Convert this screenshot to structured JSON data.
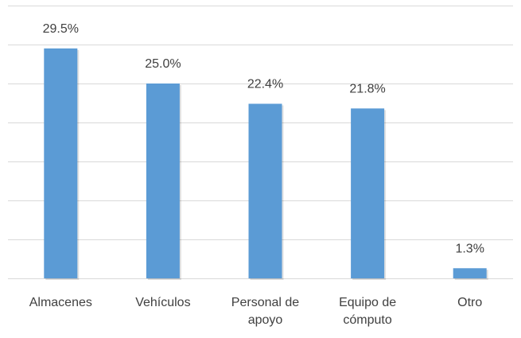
{
  "chart_data": {
    "type": "bar",
    "categories": [
      "Almacenes",
      "Vehículos",
      "Personal de apoyo",
      "Equipo de cómputo",
      "Otro"
    ],
    "values": [
      29.5,
      25.0,
      22.4,
      21.8,
      1.3
    ],
    "value_labels": [
      "29.5%",
      "25.0%",
      "22.4%",
      "21.8%",
      "1.3%"
    ],
    "color": "#5b9bd5",
    "ylim": [
      0,
      35
    ],
    "yticks": [
      0,
      5,
      10,
      15,
      20,
      25,
      30,
      35
    ],
    "grid": true
  }
}
